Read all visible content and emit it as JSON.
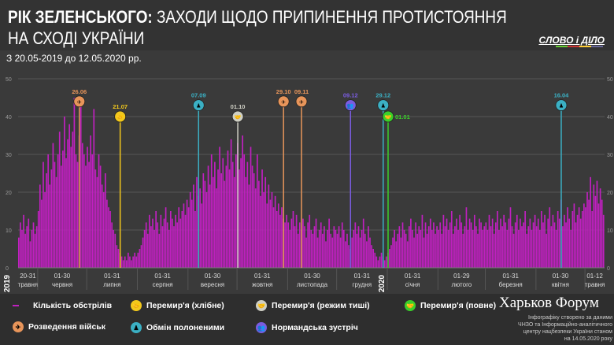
{
  "header": {
    "title_bold": "РІК ЗЕЛЕНСЬКОГО:",
    "title_rest": " ЗАХОДИ ЩОДО ПРИПИНЕННЯ ПРОТИСТОЯННЯ",
    "title_line2": "НА СХОДІ УКРАЇНИ",
    "logo": "СЛОВО і ДІЛО",
    "subtitle": "З 20.05-2019 до 12.05.2020 рр."
  },
  "chart_data": {
    "type": "bar",
    "title": "Кількість обстрілів",
    "ylim": [
      0,
      50
    ],
    "yticks": [
      0,
      10,
      20,
      30,
      40,
      50
    ],
    "bar_color": "#c020c0",
    "start_date": "20.05.2019",
    "end_date": "12.05.2020",
    "years": [
      "2019",
      "2020"
    ],
    "xticks": [
      {
        "range": "20-31",
        "month": "травня",
        "start": 0,
        "len": 12
      },
      {
        "range": "01-30",
        "month": "червня",
        "start": 12,
        "len": 30
      },
      {
        "range": "01-31",
        "month": "липня",
        "start": 42,
        "len": 31
      },
      {
        "range": "01-31",
        "month": "серпня",
        "start": 73,
        "len": 31
      },
      {
        "range": "01-30",
        "month": "вересня",
        "start": 104,
        "len": 30
      },
      {
        "range": "01-31",
        "month": "жовтня",
        "start": 134,
        "len": 31
      },
      {
        "range": "01-30",
        "month": "листопада",
        "start": 165,
        "len": 30
      },
      {
        "range": "01-31",
        "month": "грудня",
        "start": 195,
        "len": 31
      },
      {
        "range": "01-31",
        "month": "січня",
        "start": 226,
        "len": 31
      },
      {
        "range": "01-29",
        "month": "лютого",
        "start": 257,
        "len": 29
      },
      {
        "range": "01-31",
        "month": "березня",
        "start": 286,
        "len": 31
      },
      {
        "range": "01-30",
        "month": "квітня",
        "start": 317,
        "len": 30
      },
      {
        "range": "01-12",
        "month": "травня",
        "start": 347,
        "len": 12
      }
    ],
    "values": [
      8,
      12,
      10,
      14,
      9,
      11,
      13,
      7,
      10,
      12,
      9,
      11,
      15,
      22,
      18,
      28,
      20,
      25,
      30,
      22,
      26,
      33,
      28,
      24,
      30,
      36,
      27,
      31,
      40,
      29,
      34,
      38,
      32,
      36,
      45,
      30,
      28,
      35,
      44,
      33,
      30,
      27,
      32,
      28,
      35,
      30,
      42,
      26,
      24,
      30,
      27,
      22,
      20,
      25,
      18,
      16,
      15,
      12,
      10,
      9,
      6,
      5,
      4,
      3,
      2,
      3,
      2,
      4,
      3,
      2,
      3,
      4,
      3,
      4,
      5,
      6,
      8,
      10,
      12,
      9,
      14,
      11,
      13,
      10,
      15,
      12,
      9,
      14,
      11,
      13,
      16,
      12,
      10,
      15,
      13,
      11,
      14,
      12,
      16,
      13,
      15,
      17,
      14,
      18,
      16,
      20,
      18,
      22,
      15,
      24,
      19,
      21,
      17,
      25,
      23,
      20,
      27,
      22,
      30,
      24,
      28,
      21,
      26,
      32,
      25,
      29,
      23,
      27,
      31,
      26,
      34,
      28,
      24,
      30,
      33,
      26,
      29,
      35,
      30,
      24,
      28,
      22,
      32,
      27,
      25,
      21,
      30,
      23,
      19,
      26,
      20,
      24,
      17,
      22,
      18,
      20,
      16,
      19,
      15,
      17,
      14,
      16,
      13,
      12,
      14,
      12,
      10,
      13,
      15,
      11,
      14,
      9,
      12,
      10,
      13,
      11,
      8,
      12,
      14,
      10,
      9,
      11,
      13,
      8,
      10,
      12,
      9,
      11,
      7,
      10,
      13,
      9,
      8,
      11,
      10,
      9,
      11,
      8,
      12,
      10,
      7,
      9,
      6,
      5,
      8,
      10,
      12,
      9,
      11,
      8,
      10,
      13,
      9,
      7,
      11,
      8,
      6,
      5,
      4,
      3,
      2,
      3,
      4,
      3,
      2,
      3,
      4,
      5,
      6,
      8,
      10,
      7,
      9,
      11,
      8,
      12,
      10,
      9,
      7,
      11,
      13,
      10,
      8,
      12,
      9,
      11,
      10,
      14,
      8,
      12,
      9,
      11,
      13,
      10,
      12,
      9,
      11,
      10,
      12,
      9,
      14,
      11,
      13,
      10,
      12,
      15,
      9,
      11,
      13,
      10,
      14,
      12,
      9,
      11,
      16,
      10,
      13,
      12,
      10,
      14,
      11,
      9,
      13,
      12,
      10,
      11,
      12,
      10,
      14,
      11,
      13,
      9,
      12,
      15,
      10,
      13,
      11,
      14,
      12,
      10,
      13,
      16,
      11,
      9,
      12,
      14,
      10,
      13,
      11,
      12,
      15,
      9,
      11,
      13,
      10,
      12,
      14,
      11,
      13,
      10,
      15,
      12,
      14,
      9,
      13,
      16,
      11,
      14,
      12,
      10,
      15,
      13,
      18,
      11,
      14,
      12,
      16,
      13,
      10,
      15,
      17,
      12,
      14,
      16,
      13,
      15,
      17,
      16,
      20,
      18,
      24,
      15,
      22,
      19,
      23,
      17,
      21,
      18,
      14
    ],
    "events": [
      {
        "date": "26.06",
        "day": 37,
        "type": "troops",
        "level": 44
      },
      {
        "date": "21.07",
        "day": 62,
        "type": "ceasefire_bread",
        "level": 40
      },
      {
        "date": "07.09",
        "day": 110,
        "type": "exchange",
        "level": 43
      },
      {
        "date": "01.10",
        "day": 134,
        "type": "ceasefire_silence",
        "level": 40
      },
      {
        "date": "29.10",
        "day": 162,
        "type": "troops",
        "level": 44
      },
      {
        "date": "09.11",
        "day": 173,
        "type": "troops",
        "level": 44
      },
      {
        "date": "09.12",
        "day": 203,
        "type": "normandy",
        "level": 43
      },
      {
        "date": "29.12",
        "day": 223,
        "type": "exchange",
        "level": 43
      },
      {
        "date": "01.01",
        "day": 226,
        "type": "ceasefire_full",
        "level": 40
      },
      {
        "date": "16.04",
        "day": 332,
        "type": "exchange",
        "level": 43
      }
    ]
  },
  "event_colors": {
    "troops": "#e8955a",
    "ceasefire_bread": "#f2c81c",
    "exchange": "#3bb0c4",
    "ceasefire_silence": "#cfcfc4",
    "normandy": "#7a5ce0",
    "ceasefire_full": "#3ad02a"
  },
  "legend": {
    "shelling": "Кількість обстрілів",
    "bread": "Перемир'я (хлібне)",
    "silence": "Перемир'я (режим тиші)",
    "full": "Перемир'я (повне)",
    "troops": "Розведення військ",
    "exchange": "Обмін полоненими",
    "normandy": "Нормандська зустріч"
  },
  "footer": {
    "forum": "Харьков Форум",
    "source": "Інфографіку створено за даними ЧНЗО та Інформаційно-аналітичного центру нацбезпеки України станом на 14.05.2020 року"
  }
}
